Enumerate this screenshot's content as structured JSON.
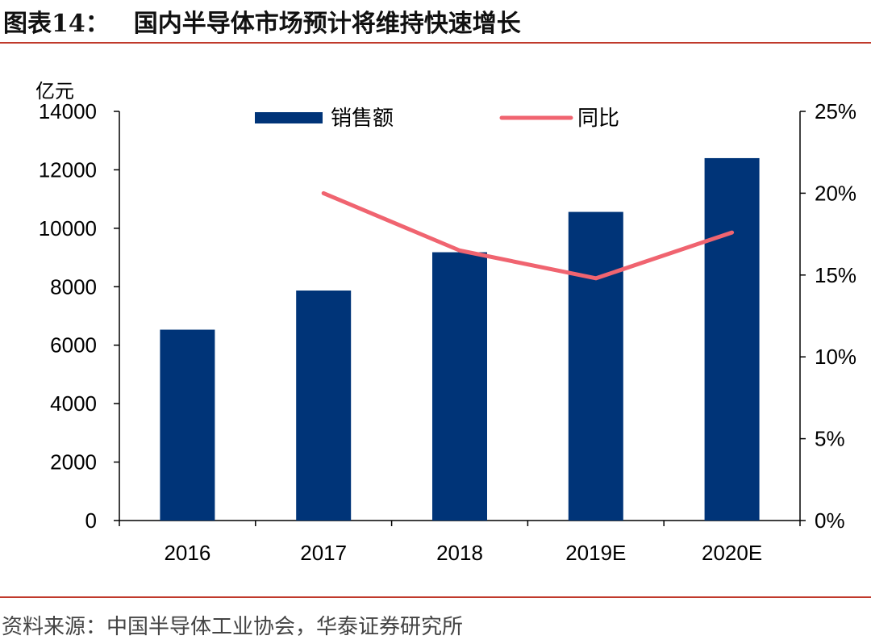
{
  "header": {
    "figure_label": "图表14：",
    "title": "国内半导体市场预计将维持快速增长"
  },
  "footer": {
    "source": "资料来源：中国半导体工业协会，华泰证券研究所"
  },
  "colors": {
    "bar": "#003478",
    "line": "#f06470",
    "rule": "#c0392b",
    "axis": "#000000"
  },
  "chart_data": {
    "type": "bar",
    "categories": [
      "2016",
      "2017",
      "2018",
      "2019E",
      "2020E"
    ],
    "series": [
      {
        "name": "销售额",
        "type": "bar",
        "axis": "left",
        "values": [
          6530,
          7870,
          9180,
          10560,
          12400
        ]
      },
      {
        "name": "同比",
        "type": "line",
        "axis": "right",
        "values": [
          null,
          20.0,
          16.5,
          14.8,
          17.6
        ]
      }
    ],
    "y_left": {
      "label": "亿元",
      "ylim": [
        0,
        14000
      ],
      "ticks": [
        "0",
        "2000",
        "4000",
        "6000",
        "8000",
        "10000",
        "12000",
        "14000"
      ]
    },
    "y_right": {
      "ylim": [
        0,
        25
      ],
      "ticks": [
        "0%",
        "5%",
        "10%",
        "15%",
        "20%",
        "25%"
      ]
    },
    "legend": "top-center",
    "grid": false
  }
}
